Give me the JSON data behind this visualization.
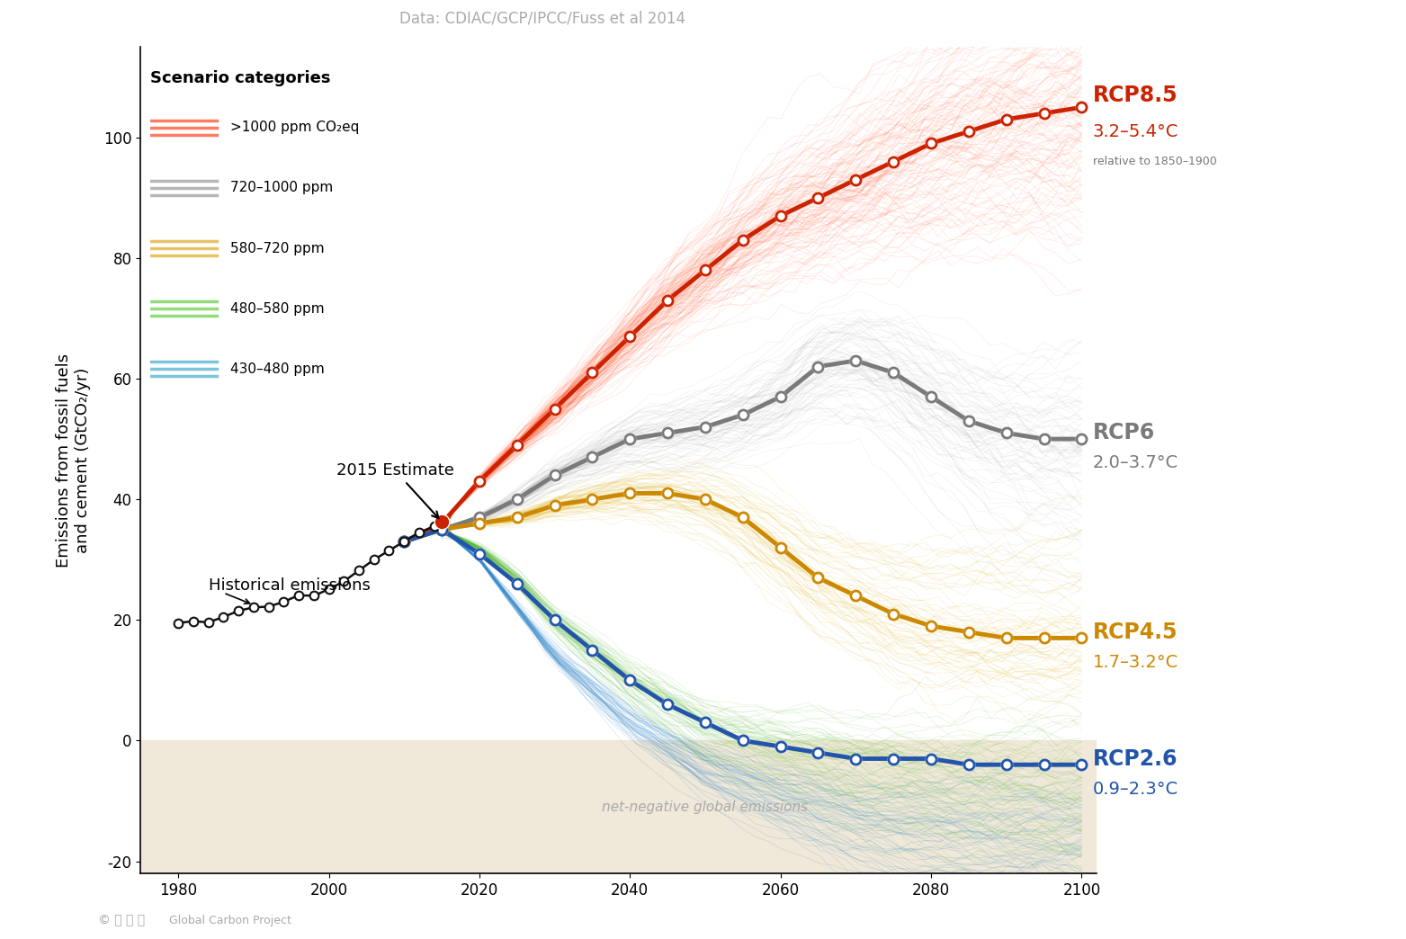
{
  "title": "Data: CDIAC/GCP/IPCC/Fuss et al 2014",
  "ylabel": "Emissions from fossil fuels\nand cement (GtCO₂/yr)",
  "xlim": [
    1975,
    2102
  ],
  "ylim": [
    -22,
    115
  ],
  "net_negative_bg": "#f0e8d8",
  "plot_bg": "#ffffff",
  "rcp85": {
    "years": [
      2010,
      2015,
      2020,
      2025,
      2030,
      2035,
      2040,
      2045,
      2050,
      2055,
      2060,
      2065,
      2070,
      2075,
      2080,
      2085,
      2090,
      2095,
      2100
    ],
    "values": [
      33,
      36,
      43,
      49,
      55,
      61,
      67,
      73,
      78,
      83,
      87,
      90,
      93,
      96,
      99,
      101,
      103,
      104,
      105
    ],
    "color": "#cc2200",
    "label": "RCP8.5",
    "sublabel": "3.2–5.4°C",
    "note": "relative to 1850–1900"
  },
  "rcp6": {
    "years": [
      2010,
      2015,
      2020,
      2025,
      2030,
      2035,
      2040,
      2045,
      2050,
      2055,
      2060,
      2065,
      2070,
      2075,
      2080,
      2085,
      2090,
      2095,
      2100
    ],
    "values": [
      33,
      35,
      37,
      40,
      44,
      47,
      50,
      51,
      52,
      54,
      57,
      62,
      63,
      61,
      57,
      53,
      51,
      50,
      50
    ],
    "color": "#7a7a7a",
    "label": "RCP6",
    "sublabel": "2.0–3.7°C"
  },
  "rcp45": {
    "years": [
      2010,
      2015,
      2020,
      2025,
      2030,
      2035,
      2040,
      2045,
      2050,
      2055,
      2060,
      2065,
      2070,
      2075,
      2080,
      2085,
      2090,
      2095,
      2100
    ],
    "values": [
      33,
      35,
      36,
      37,
      39,
      40,
      41,
      41,
      40,
      37,
      32,
      27,
      24,
      21,
      19,
      18,
      17,
      17,
      17
    ],
    "color": "#cc8800",
    "label": "RCP4.5",
    "sublabel": "1.7–3.2°C"
  },
  "rcp26": {
    "years": [
      2010,
      2015,
      2020,
      2025,
      2030,
      2035,
      2040,
      2045,
      2050,
      2055,
      2060,
      2065,
      2070,
      2075,
      2080,
      2085,
      2090,
      2095,
      2100
    ],
    "values": [
      33,
      35,
      31,
      26,
      20,
      15,
      10,
      6,
      3,
      0,
      -1,
      -2,
      -3,
      -3,
      -3,
      -4,
      -4,
      -4,
      -4
    ],
    "color": "#2255aa",
    "label": "RCP2.6",
    "sublabel": "0.9–2.3°C"
  },
  "historical": {
    "years": [
      1980,
      1982,
      1984,
      1986,
      1988,
      1990,
      1992,
      1994,
      1996,
      1998,
      2000,
      2002,
      2004,
      2006,
      2008,
      2010,
      2012,
      2014
    ],
    "values": [
      19.5,
      19.8,
      19.6,
      20.5,
      21.5,
      22.1,
      22.2,
      23.0,
      24.1,
      24.0,
      25.1,
      26.4,
      28.2,
      30.0,
      31.5,
      33.0,
      34.5,
      35.5
    ],
    "color": "#111111"
  },
  "estimate_2015": {
    "year": 2015,
    "value": 36.3,
    "color": "#cc2200"
  },
  "scenario_bands": {
    "gt1000": {
      "color": "#ff4422",
      "label": ">1000 ppm CO₂eq"
    },
    "band720_1000": {
      "color": "#999999",
      "label": "720–1000 ppm"
    },
    "band580_720": {
      "color": "#ddaa22",
      "label": "580–720 ppm"
    },
    "band480_580": {
      "color": "#66cc44",
      "label": "480–580 ppm"
    },
    "band430_480": {
      "color": "#44aacc",
      "label": "430–480 ppm"
    }
  },
  "net_negative_label": "net-negative global emissions",
  "historical_label": "Historical emissions",
  "estimate_label": "2015 Estimate",
  "legend_title": "Scenario categories",
  "source_label": "Data: CDIAC/GCP/IPCC/Fuss et al 2014"
}
